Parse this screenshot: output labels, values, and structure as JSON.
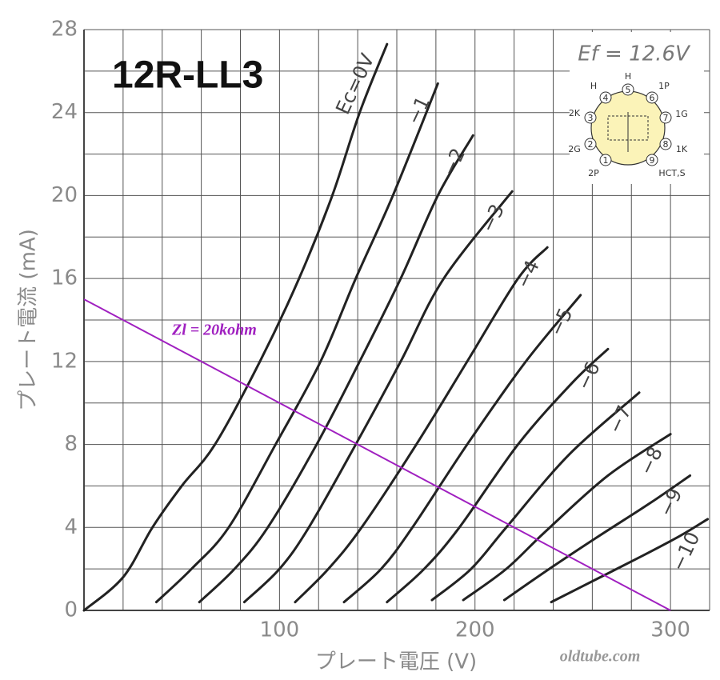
{
  "chart_data": {
    "type": "line",
    "title": "12R-LL3",
    "x_label": "プレート電圧 (V)",
    "y_label": "プレート電流 (mA)",
    "xlim": [
      0,
      320
    ],
    "ylim": [
      0,
      28
    ],
    "xticks": [
      100,
      200,
      300
    ],
    "yticks": [
      0,
      4,
      8,
      12,
      16,
      20,
      24,
      28
    ],
    "x_grid": [
      0,
      20,
      40,
      60,
      80,
      100,
      120,
      140,
      160,
      180,
      200,
      220,
      240,
      260,
      280,
      300,
      320
    ],
    "y_grid": [
      0,
      2,
      4,
      6,
      8,
      10,
      12,
      14,
      16,
      18,
      20,
      22,
      24,
      26,
      28
    ],
    "grid": true,
    "series": [
      {
        "name": "Ec=0V",
        "color": "#222222",
        "x": [
          0,
          20,
          35,
          50,
          67,
          90,
          110,
          127,
          141,
          155
        ],
        "values": [
          0,
          1.6,
          4,
          6,
          8,
          12,
          16,
          20,
          24,
          27.3
        ]
      },
      {
        "name": "−1",
        "color": "#222222",
        "x": [
          37,
          55,
          74,
          98,
          121,
          139,
          158,
          181
        ],
        "values": [
          0.4,
          2,
          4,
          8,
          12,
          16,
          20,
          25.4
        ]
      },
      {
        "name": "−2",
        "color": "#222222",
        "x": [
          59,
          77,
          94,
          119,
          141,
          162,
          181,
          199
        ],
        "values": [
          0.4,
          2,
          4,
          8,
          12,
          16,
          20,
          22.9
        ]
      },
      {
        "name": "−3",
        "color": "#222222",
        "x": [
          82,
          100,
          115,
          139,
          162,
          184,
          219
        ],
        "values": [
          0.4,
          2,
          4,
          8,
          12,
          16,
          20.2
        ]
      },
      {
        "name": "−4",
        "color": "#222222",
        "x": [
          108,
          125,
          142,
          170,
          196,
          222,
          237
        ],
        "values": [
          0.4,
          2,
          4,
          8,
          12,
          16,
          17.5
        ]
      },
      {
        "name": "−5",
        "color": "#222222",
        "x": [
          133,
          152,
          168,
          196,
          226,
          254
        ],
        "values": [
          0.4,
          2,
          4,
          8,
          12,
          15.2
        ]
      },
      {
        "name": "−6",
        "color": "#222222",
        "x": [
          155,
          174,
          192,
          222,
          250,
          268
        ],
        "values": [
          0.4,
          2,
          4,
          8,
          11,
          12.6
        ]
      },
      {
        "name": "−7",
        "color": "#222222",
        "x": [
          178,
          198,
          216,
          248,
          284
        ],
        "values": [
          0.5,
          2,
          4,
          7.5,
          10.5
        ]
      },
      {
        "name": "−8",
        "color": "#222222",
        "x": [
          194,
          216,
          236,
          268,
          300
        ],
        "values": [
          0.5,
          2,
          3.8,
          6.5,
          8.5
        ]
      },
      {
        "name": "−9",
        "color": "#222222",
        "x": [
          215,
          238,
          262,
          290,
          310
        ],
        "values": [
          0.5,
          2,
          3.5,
          5.2,
          6.5
        ]
      },
      {
        "name": "−10",
        "color": "#222222",
        "x": [
          239,
          262,
          285,
          305,
          319
        ],
        "values": [
          0.4,
          1.5,
          2.6,
          3.6,
          4.4
        ]
      }
    ],
    "load_line": {
      "label": "Zl = 20kohm",
      "color": "#a020c0",
      "x": [
        0,
        300
      ],
      "values": [
        15,
        0
      ]
    },
    "inset": {
      "heater": "Ef = 12.6V",
      "pins": [
        {
          "num": "1",
          "label": "2P"
        },
        {
          "num": "2",
          "label": "2G"
        },
        {
          "num": "3",
          "label": "2K"
        },
        {
          "num": "4",
          "label": "H"
        },
        {
          "num": "5",
          "label": "H"
        },
        {
          "num": "6",
          "label": "1P"
        },
        {
          "num": "7",
          "label": "1G"
        },
        {
          "num": "8",
          "label": "1K"
        },
        {
          "num": "9",
          "label": "HCT,S"
        }
      ]
    },
    "watermark": "oldtube.com"
  }
}
